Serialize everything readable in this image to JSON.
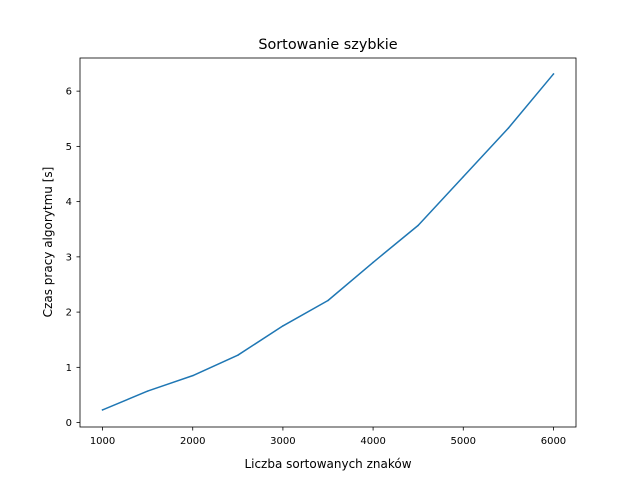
{
  "chart_data": {
    "type": "line",
    "title": "Sortowanie szybkie",
    "xlabel": "Liczba sortowanych znaków",
    "ylabel": "Czas pracy algorytmu [s]",
    "xlim": [
      750,
      6250
    ],
    "ylim": [
      -0.08,
      6.6
    ],
    "xticks": [
      1000,
      2000,
      3000,
      4000,
      5000,
      6000
    ],
    "yticks": [
      0,
      1,
      2,
      3,
      4,
      5,
      6
    ],
    "grid": false,
    "legend": "none",
    "series": [
      {
        "color": "#1f77b4",
        "x": [
          1000,
          1500,
          2000,
          2500,
          3000,
          3500,
          4000,
          4500,
          5000,
          5500,
          6000
        ],
        "y": [
          0.23,
          0.57,
          0.85,
          1.22,
          1.75,
          2.21,
          2.9,
          3.57,
          4.45,
          5.33,
          6.31
        ]
      }
    ]
  }
}
